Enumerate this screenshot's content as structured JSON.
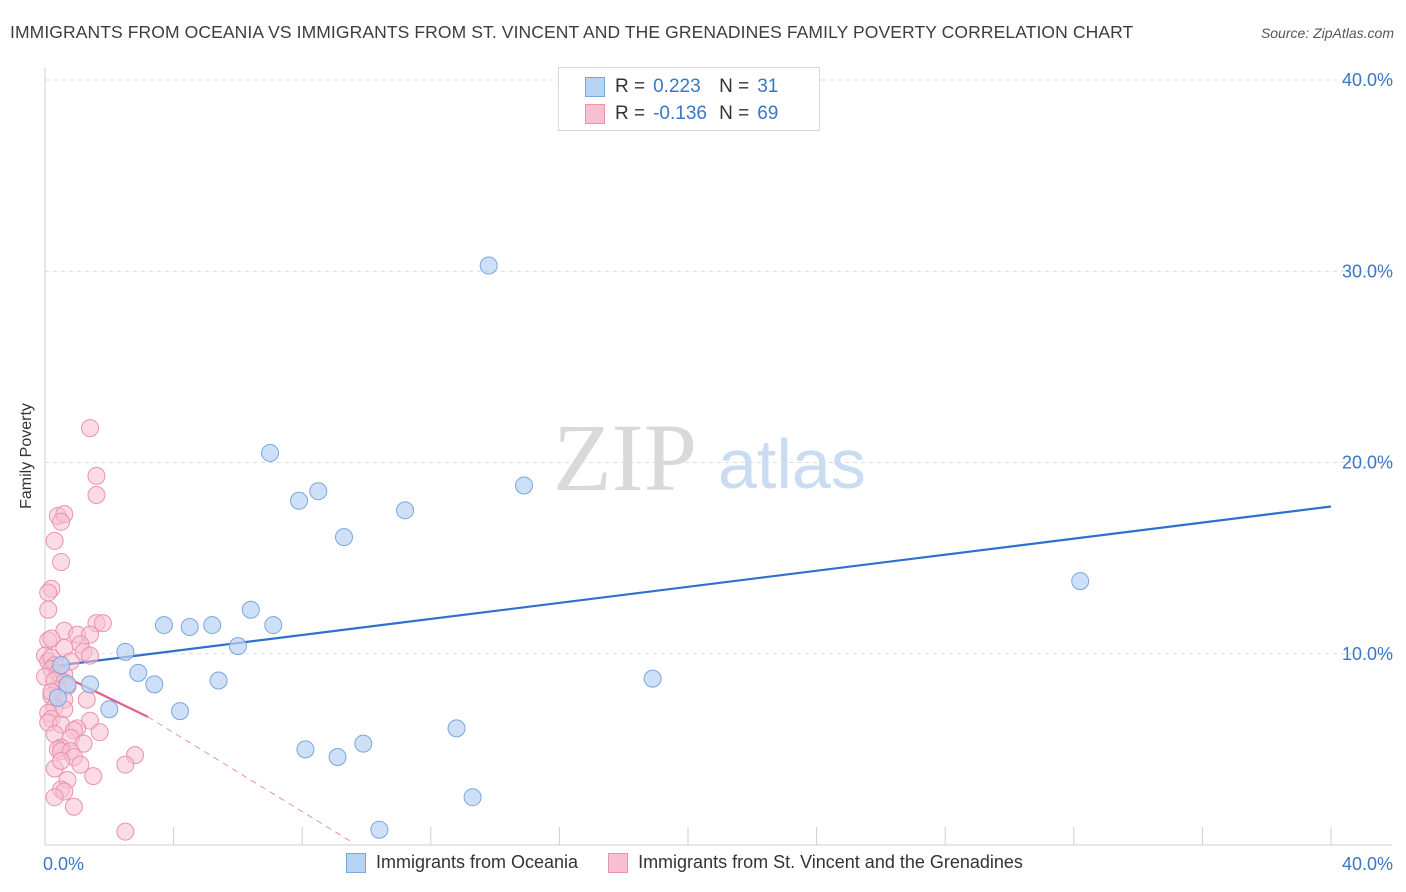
{
  "title": "IMMIGRANTS FROM OCEANIA VS IMMIGRANTS FROM ST. VINCENT AND THE GRENADINES FAMILY POVERTY CORRELATION CHART",
  "source": "Source: ZipAtlas.com",
  "watermark": {
    "zip": "ZIP",
    "atlas": "atlas"
  },
  "legend": {
    "rows": [
      {
        "r_label": "R =",
        "r_value": "0.223",
        "n_label": "N =",
        "n_value": "31"
      },
      {
        "r_label": "R =",
        "r_value": "-0.136",
        "n_label": "N =",
        "n_value": "69"
      }
    ]
  },
  "colors": {
    "blue_fill": "#b9d3f3",
    "blue_stroke": "#7aa6dc",
    "blue_line": "#2f6fd1",
    "pink_fill": "#f8bfd0",
    "pink_stroke": "#ea93ae",
    "pink_line": "#e0618b",
    "tick_label": "#3a76c8",
    "grid": "#dcdcdc"
  },
  "chart_data": {
    "type": "scatter",
    "title": "IMMIGRANTS FROM OCEANIA VS IMMIGRANTS FROM ST. VINCENT AND THE GRENADINES FAMILY POVERTY CORRELATION CHART",
    "xlabel": "",
    "ylabel": "Family Poverty",
    "xlim": [
      0,
      40
    ],
    "ylim": [
      0,
      40
    ],
    "x_tick_labels": [
      "0.0%",
      "40.0%"
    ],
    "y_ticks": [
      {
        "value": 10,
        "label": "10.0%"
      },
      {
        "value": 20,
        "label": "20.0%"
      },
      {
        "value": 30,
        "label": "30.0%"
      },
      {
        "value": 40,
        "label": "40.0%"
      }
    ],
    "grid": true,
    "legend_position": "top-center",
    "series": [
      {
        "name": "Immigrants from Oceania",
        "color": "blue",
        "r": 0.223,
        "n": 31,
        "trend": {
          "x0": 0,
          "y0": 9.3,
          "x1": 40,
          "y1": 17.7
        },
        "points": [
          [
            13.8,
            30.3
          ],
          [
            7.0,
            20.5
          ],
          [
            8.5,
            18.5
          ],
          [
            7.9,
            18.0
          ],
          [
            14.9,
            18.8
          ],
          [
            11.2,
            17.5
          ],
          [
            9.3,
            16.1
          ],
          [
            32.2,
            13.8
          ],
          [
            6.4,
            12.3
          ],
          [
            3.7,
            11.5
          ],
          [
            4.5,
            11.4
          ],
          [
            5.2,
            11.5
          ],
          [
            7.1,
            11.5
          ],
          [
            6.0,
            10.4
          ],
          [
            2.5,
            10.1
          ],
          [
            0.5,
            9.4
          ],
          [
            2.9,
            9.0
          ],
          [
            0.7,
            8.4
          ],
          [
            1.4,
            8.4
          ],
          [
            3.4,
            8.4
          ],
          [
            5.4,
            8.6
          ],
          [
            18.9,
            8.7
          ],
          [
            0.4,
            7.7
          ],
          [
            2.0,
            7.1
          ],
          [
            4.2,
            7.0
          ],
          [
            12.8,
            6.1
          ],
          [
            8.1,
            5.0
          ],
          [
            9.1,
            4.6
          ],
          [
            9.9,
            5.3
          ],
          [
            13.3,
            2.5
          ],
          [
            10.4,
            0.8
          ]
        ]
      },
      {
        "name": "Immigrants from St. Vincent and the Grenadines",
        "color": "pink",
        "r": -0.136,
        "n": 69,
        "trend": {
          "x0": 0,
          "y0": 9.3,
          "x1": 3.2,
          "y1": 6.7
        },
        "trend_extension": {
          "x0": 3.2,
          "y0": 6.7,
          "x1": 9.5,
          "y1": 0.2
        },
        "points": [
          [
            1.4,
            21.8
          ],
          [
            1.6,
            19.3
          ],
          [
            1.6,
            18.3
          ],
          [
            0.4,
            17.2
          ],
          [
            0.6,
            17.3
          ],
          [
            0.5,
            16.9
          ],
          [
            0.3,
            15.9
          ],
          [
            0.5,
            14.8
          ],
          [
            0.2,
            13.4
          ],
          [
            0.1,
            13.2
          ],
          [
            0.1,
            12.3
          ],
          [
            1.6,
            11.6
          ],
          [
            1.8,
            11.6
          ],
          [
            0.6,
            11.2
          ],
          [
            1.0,
            11.0
          ],
          [
            1.4,
            11.0
          ],
          [
            0.1,
            10.7
          ],
          [
            0.2,
            10.8
          ],
          [
            1.1,
            10.5
          ],
          [
            0.6,
            10.3
          ],
          [
            1.2,
            10.1
          ],
          [
            1.4,
            9.9
          ],
          [
            0.0,
            9.9
          ],
          [
            0.1,
            9.6
          ],
          [
            0.2,
            9.8
          ],
          [
            0.3,
            9.4
          ],
          [
            0.2,
            9.2
          ],
          [
            0.4,
            9.0
          ],
          [
            0.6,
            8.9
          ],
          [
            0.0,
            8.8
          ],
          [
            0.3,
            8.6
          ],
          [
            0.6,
            8.5
          ],
          [
            0.7,
            8.3
          ],
          [
            0.4,
            8.1
          ],
          [
            0.2,
            7.8
          ],
          [
            0.6,
            7.6
          ],
          [
            1.3,
            7.6
          ],
          [
            0.3,
            7.2
          ],
          [
            0.6,
            7.1
          ],
          [
            0.1,
            6.9
          ],
          [
            0.2,
            6.6
          ],
          [
            0.1,
            6.4
          ],
          [
            1.4,
            6.5
          ],
          [
            0.5,
            6.3
          ],
          [
            1.0,
            6.1
          ],
          [
            0.9,
            6.0
          ],
          [
            0.3,
            5.8
          ],
          [
            1.7,
            5.9
          ],
          [
            0.8,
            5.6
          ],
          [
            1.2,
            5.3
          ],
          [
            0.5,
            5.1
          ],
          [
            0.4,
            5.0
          ],
          [
            0.5,
            4.9
          ],
          [
            0.8,
            4.9
          ],
          [
            2.8,
            4.7
          ],
          [
            0.9,
            4.6
          ],
          [
            2.5,
            4.2
          ],
          [
            1.1,
            4.2
          ],
          [
            0.3,
            4.0
          ],
          [
            1.5,
            3.6
          ],
          [
            0.7,
            3.4
          ],
          [
            0.5,
            2.9
          ],
          [
            0.6,
            2.8
          ],
          [
            0.3,
            2.5
          ],
          [
            0.9,
            2.0
          ],
          [
            2.5,
            0.7
          ],
          [
            0.5,
            4.4
          ],
          [
            0.2,
            8.0
          ],
          [
            0.8,
            9.6
          ]
        ]
      }
    ]
  }
}
